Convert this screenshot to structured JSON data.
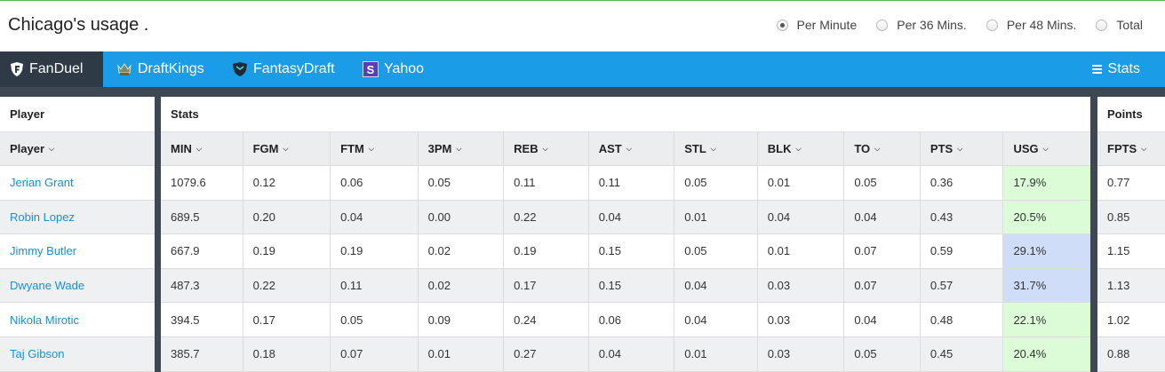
{
  "header": {
    "title": "Chicago's usage .",
    "radios": [
      {
        "label": "Per Minute",
        "checked": true
      },
      {
        "label": "Per 36 Mins.",
        "checked": false
      },
      {
        "label": "Per 48 Mins.",
        "checked": false
      },
      {
        "label": "Total",
        "checked": false
      }
    ]
  },
  "tabs": {
    "fanduel": "FanDuel",
    "draftkings": "DraftKings",
    "fantasydraft": "FantasyDraft",
    "yahoo": "Yahoo",
    "yahoo_icon": "S",
    "stats": "Stats"
  },
  "colors": {
    "tabbar": "#1a9ce6",
    "active_tab": "#2e3a45",
    "usg_green": "#dcfcd8",
    "usg_blue": "#cfddf8",
    "link": "#1a8fd6"
  },
  "table": {
    "groups": {
      "player": "Player",
      "stats": "Stats",
      "points": "Points"
    },
    "player_header": "Player",
    "stat_headers": [
      "MIN",
      "FGM",
      "FTM",
      "3PM",
      "REB",
      "AST",
      "STL",
      "BLK",
      "TO",
      "PTS",
      "USG"
    ],
    "points_header": "FPTS",
    "rows": [
      {
        "player": "Jerian Grant",
        "stats": [
          "1079.6",
          "0.12",
          "0.06",
          "0.05",
          "0.11",
          "0.11",
          "0.05",
          "0.01",
          "0.05",
          "0.36",
          "17.9%"
        ],
        "usg_level": "green",
        "fpts": "0.77"
      },
      {
        "player": "Robin Lopez",
        "stats": [
          "689.5",
          "0.20",
          "0.04",
          "0.00",
          "0.22",
          "0.04",
          "0.01",
          "0.04",
          "0.04",
          "0.43",
          "20.5%"
        ],
        "usg_level": "green",
        "fpts": "0.85"
      },
      {
        "player": "Jimmy Butler",
        "stats": [
          "667.9",
          "0.19",
          "0.19",
          "0.02",
          "0.19",
          "0.15",
          "0.05",
          "0.01",
          "0.07",
          "0.59",
          "29.1%"
        ],
        "usg_level": "blue",
        "fpts": "1.15"
      },
      {
        "player": "Dwyane Wade",
        "stats": [
          "487.3",
          "0.22",
          "0.11",
          "0.02",
          "0.17",
          "0.15",
          "0.04",
          "0.03",
          "0.07",
          "0.57",
          "31.7%"
        ],
        "usg_level": "blue",
        "fpts": "1.13"
      },
      {
        "player": "Nikola Mirotic",
        "stats": [
          "394.5",
          "0.17",
          "0.05",
          "0.09",
          "0.24",
          "0.06",
          "0.04",
          "0.03",
          "0.04",
          "0.48",
          "22.1%"
        ],
        "usg_level": "green",
        "fpts": "1.02"
      },
      {
        "player": "Taj Gibson",
        "stats": [
          "385.7",
          "0.18",
          "0.07",
          "0.01",
          "0.27",
          "0.04",
          "0.01",
          "0.03",
          "0.05",
          "0.45",
          "20.4%"
        ],
        "usg_level": "green",
        "fpts": "0.88"
      }
    ]
  }
}
